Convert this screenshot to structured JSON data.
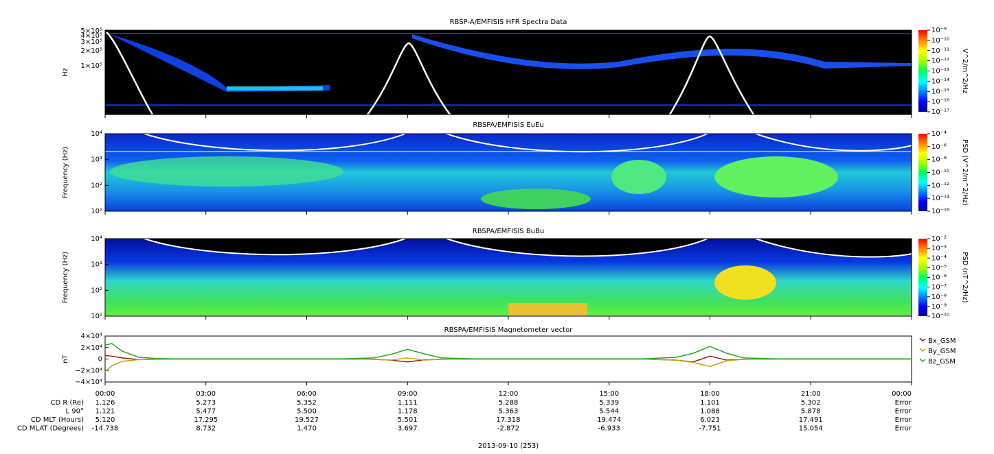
{
  "chart_data": [
    {
      "type": "spectrogram",
      "title": "RBSP-A/EMFISIS  HFR Spectra Data",
      "ylabel": "Hz",
      "ylog": true,
      "ylim": [
        10600,
        515000
      ],
      "yticks": [
        {
          "value": 100000,
          "label": "1×10⁵"
        },
        {
          "value": 200000,
          "label": "2×10⁵"
        },
        {
          "value": 300000,
          "label": "3×10⁵"
        },
        {
          "value": 400000,
          "label": "4×10⁵"
        },
        {
          "value": 500000,
          "label": "5×10⁵"
        }
      ],
      "colorbar_label": "V^2/m^2/Hz",
      "zlog": true,
      "zlim": [
        1e-17,
        1e-09
      ],
      "zticks": [
        {
          "value": 1e-17,
          "label": "10⁻¹⁷"
        },
        {
          "value": 1e-16,
          "label": "10⁻¹⁶"
        },
        {
          "value": 1e-15,
          "label": "10⁻¹⁵"
        },
        {
          "value": 1e-14,
          "label": "10⁻¹⁴"
        },
        {
          "value": 1e-13,
          "label": "10⁻¹³"
        },
        {
          "value": 1e-12,
          "label": "10⁻¹²"
        },
        {
          "value": 1e-11,
          "label": "10⁻¹¹"
        },
        {
          "value": 1e-10,
          "label": "10⁻¹⁰"
        },
        {
          "value": 1e-09,
          "label": "10⁻⁹"
        }
      ]
    },
    {
      "type": "spectrogram",
      "title": "RBSPA/EMFISIS  EuEu",
      "ylabel": "Frequency (Hz)",
      "ylog": true,
      "ylim": [
        10,
        10000
      ],
      "yticks": [
        {
          "value": 10,
          "label": "10¹"
        },
        {
          "value": 100,
          "label": "10²"
        },
        {
          "value": 1000,
          "label": "10³"
        },
        {
          "value": 10000,
          "label": "10⁴"
        }
      ],
      "colorbar_label": "PSD (V^2/m^2/Hz)",
      "zlog": true,
      "zlim": [
        1e-16,
        0.0001
      ],
      "zticks": [
        {
          "value": 1e-16,
          "label": "10⁻¹⁶"
        },
        {
          "value": 1e-14,
          "label": "10⁻¹⁴"
        },
        {
          "value": 1e-12,
          "label": "10⁻¹²"
        },
        {
          "value": 1e-10,
          "label": "10⁻¹⁰"
        },
        {
          "value": 1e-08,
          "label": "10⁻⁸"
        },
        {
          "value": 1e-06,
          "label": "10⁻⁶"
        },
        {
          "value": 0.0001,
          "label": "10⁻⁴"
        }
      ]
    },
    {
      "type": "spectrogram",
      "title": "RBSPA/EMFISIS  BuBu",
      "ylabel": "Frequency (Hz)",
      "ylog": true,
      "ylim": [
        10,
        10000
      ],
      "yticks": [
        {
          "value": 10,
          "label": "10¹"
        },
        {
          "value": 100,
          "label": "10²"
        },
        {
          "value": 1000,
          "label": "10³"
        },
        {
          "value": 10000,
          "label": "10⁴"
        }
      ],
      "colorbar_label": "PSD (nT^2/Hz)",
      "zlog": true,
      "zlim": [
        1e-10,
        0.01
      ],
      "zticks": [
        {
          "value": 1e-10,
          "label": "10⁻¹⁰"
        },
        {
          "value": 1e-09,
          "label": "10⁻⁹"
        },
        {
          "value": 1e-08,
          "label": "10⁻⁸"
        },
        {
          "value": 1e-07,
          "label": "10⁻⁷"
        },
        {
          "value": 1e-06,
          "label": "10⁻⁶"
        },
        {
          "value": 1e-05,
          "label": "10⁻⁵"
        },
        {
          "value": 0.0001,
          "label": "10⁻⁴"
        },
        {
          "value": 0.001,
          "label": "10⁻³"
        },
        {
          "value": 0.01,
          "label": "10⁻²"
        }
      ]
    },
    {
      "type": "line",
      "title": "RBSPA/EMFISIS  Magnetometer vector",
      "ylabel": "nT",
      "ylim": [
        -40000,
        40000
      ],
      "yticks": [
        {
          "value": 40000,
          "label": "4×10⁴"
        },
        {
          "value": 20000,
          "label": "2×10⁴"
        },
        0,
        {
          "value": -20000,
          "label": "−2×10⁴"
        },
        {
          "value": -40000,
          "label": "−4×10⁴"
        }
      ],
      "x": [
        0,
        0.2,
        0.5,
        1,
        1.5,
        2,
        7,
        8,
        8.5,
        9,
        9.5,
        10,
        11,
        16,
        17,
        17.5,
        18,
        18.5,
        19,
        20,
        24
      ],
      "series": [
        {
          "name": "Bx_GSM",
          "color": "#8b1a1a",
          "values": [
            6000,
            5000,
            2000,
            -1000,
            -500,
            0,
            0,
            -500,
            -2000,
            -5000,
            -1500,
            -500,
            0,
            0,
            -2000,
            -5000,
            5000,
            -2000,
            -500,
            0,
            0
          ]
        },
        {
          "name": "By_GSM",
          "color": "#c8a000",
          "values": [
            -22000,
            -12000,
            -4000,
            -1000,
            -300,
            0,
            0,
            -500,
            -2000,
            2000,
            -2000,
            -500,
            0,
            0,
            -2000,
            -6000,
            -13000,
            -3000,
            -500,
            0,
            0
          ]
        },
        {
          "name": "Bz_GSM",
          "color": "#2ca02c",
          "values": [
            24000,
            27000,
            14000,
            3000,
            1000,
            300,
            300,
            2000,
            8000,
            17000,
            9000,
            2000,
            300,
            300,
            3000,
            10000,
            22000,
            10000,
            2000,
            300,
            300
          ]
        }
      ]
    }
  ],
  "time_axis": {
    "xlim": [
      0,
      24
    ],
    "xticks": [
      {
        "value": 0,
        "label": "00:00"
      },
      {
        "value": 3,
        "label": "03:00"
      },
      {
        "value": 6,
        "label": "06:00"
      },
      {
        "value": 9,
        "label": "09:00"
      },
      {
        "value": 12,
        "label": "12:00"
      },
      {
        "value": 15,
        "label": "15:00"
      },
      {
        "value": 18,
        "label": "18:00"
      },
      {
        "value": 21,
        "label": "21:00"
      },
      {
        "value": 24,
        "label": "00:00"
      }
    ],
    "date_label": "2013-09-10 (253)"
  },
  "ephemeris": {
    "rows": [
      {
        "label": "CD R (Re)",
        "values": [
          "1.126",
          "5.273",
          "5.352",
          "1.111",
          "5.288",
          "5.339",
          "1.101",
          "5.302",
          "Error"
        ]
      },
      {
        "label": "L 90°",
        "values": [
          "1.121",
          "5.477",
          "5.500",
          "1.178",
          "5.363",
          "5.544",
          "1.088",
          "5.878",
          "Error"
        ]
      },
      {
        "label": "CD MLT (Hours)",
        "values": [
          "5.120",
          "17.295",
          "19.527",
          "5.501",
          "17.318",
          "19.474",
          "6.023",
          "17.491",
          "Error"
        ]
      },
      {
        "label": "CD MLAT (Degrees)",
        "values": [
          "-14.738",
          "8.732",
          "1.470",
          "3.697",
          "-2.872",
          "-6.933",
          "-7.751",
          "15.054",
          "Error"
        ]
      }
    ]
  }
}
